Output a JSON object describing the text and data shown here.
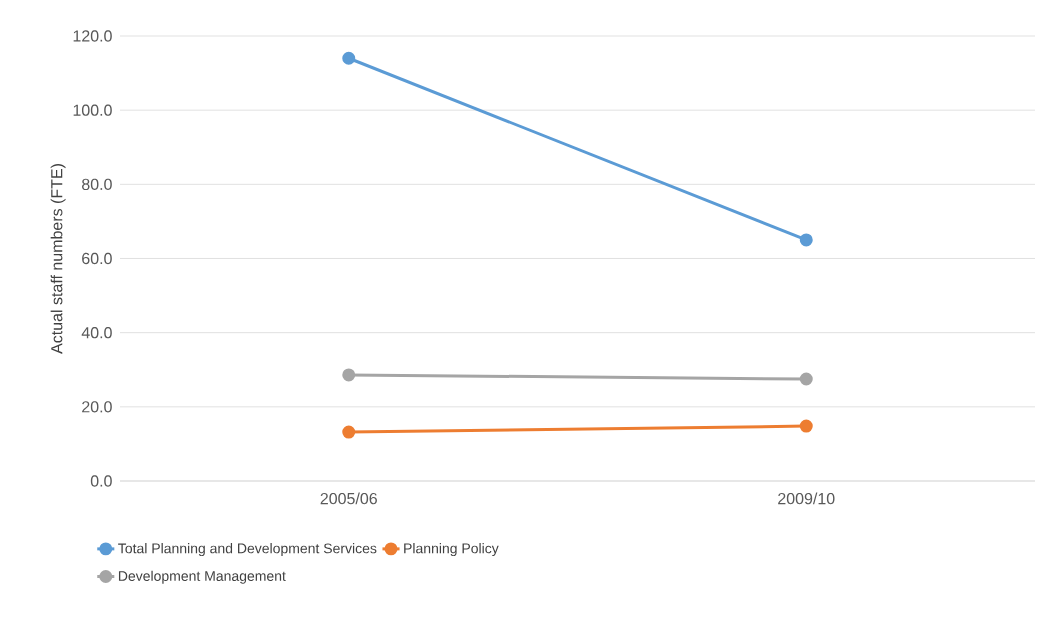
{
  "chart_data": {
    "type": "line",
    "ylabel": "Actual staff numbers (FTE)",
    "categories": [
      "2005/06",
      "2009/10"
    ],
    "series": [
      {
        "name": "Total Planning and Development Services",
        "color": "#5b9bd5",
        "values": [
          114,
          65
        ]
      },
      {
        "name": "Planning Policy",
        "color": "#ed7d31",
        "values": [
          13.2,
          14.8
        ]
      },
      {
        "name": "Development Management",
        "color": "#a5a5a5",
        "values": [
          28.6,
          27.5
        ]
      }
    ],
    "ylim": [
      0,
      120
    ],
    "yticks": [
      {
        "value": 0,
        "label": "0.0"
      },
      {
        "value": 20,
        "label": "20.0"
      },
      {
        "value": 40,
        "label": "40.0"
      },
      {
        "value": 60,
        "label": "60.0"
      },
      {
        "value": 80,
        "label": "80.0"
      },
      {
        "value": 100,
        "label": "100.0"
      },
      {
        "value": 120,
        "label": "120.0"
      }
    ],
    "grid": "y",
    "legend": "bottom",
    "marker": "circle",
    "line_style": "solid"
  }
}
